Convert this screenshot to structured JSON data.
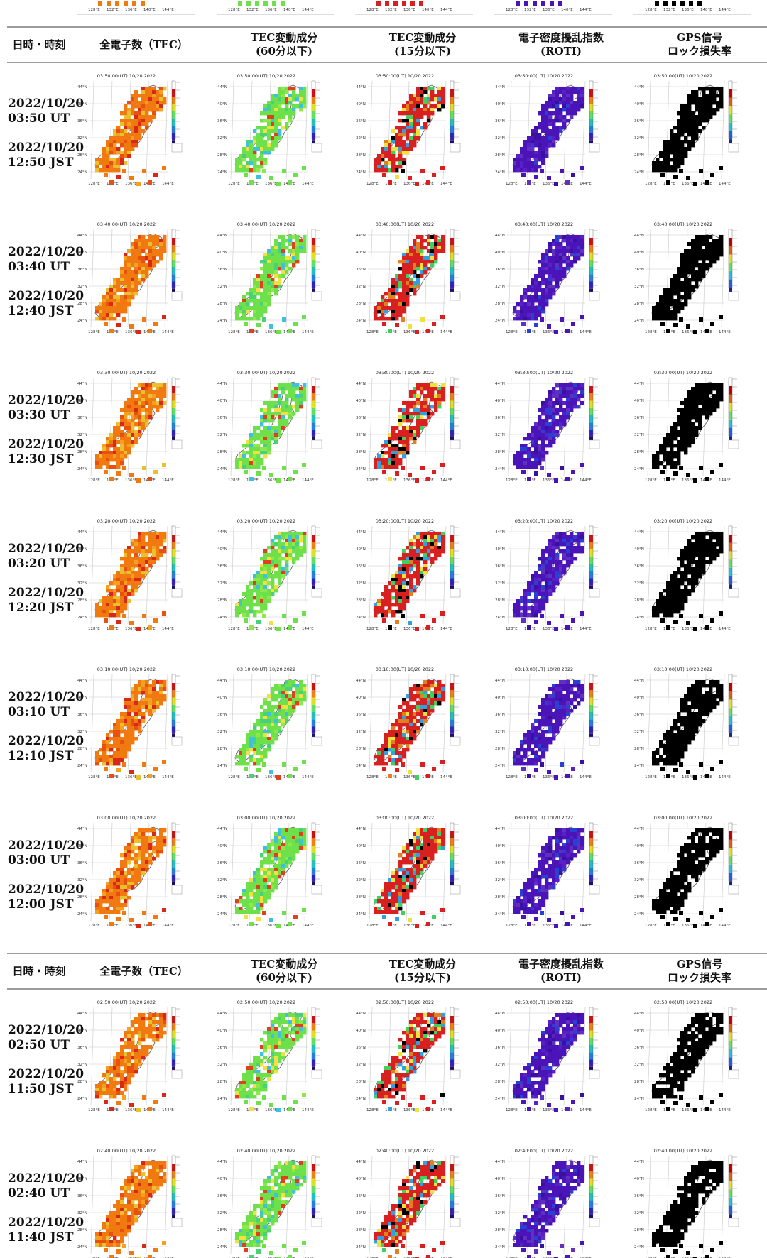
{
  "headers": [
    {
      "lines": [
        "日時・時刻"
      ]
    },
    {
      "lines": [
        "全電子数（TEC）"
      ]
    },
    {
      "lines": [
        "TEC変動成分",
        "(60分以下)"
      ]
    },
    {
      "lines": [
        "TEC変動成分",
        "(15分以下)"
      ]
    },
    {
      "lines": [
        "電子密度擾乱指数",
        "(ROTI)"
      ]
    },
    {
      "lines": [
        "GPS信号",
        "ロック損失率"
      ]
    }
  ],
  "map_text": {
    "lat_ticks": [
      "44°N",
      "40°N",
      "36°N",
      "32°N",
      "28°N",
      "24°N"
    ],
    "lon_ticks": [
      "128°E",
      "132°E",
      "136°E",
      "140°E",
      "144°E"
    ],
    "date": "10/20 2022"
  },
  "panel_types": [
    "tec",
    "dtec60",
    "dtec15",
    "roti",
    "lol"
  ],
  "colors": {
    "header_rule": "#9c9c9c",
    "tec": "#f07a10",
    "dtec60": "#6ee04a",
    "dtec15": "#d82020",
    "roti": "#4a14b8",
    "lol": "#000000"
  },
  "rows": [
    {
      "utc": "03:50",
      "date_ut": "2022/10/20",
      "ut": "03:50 UT",
      "date_jst": "2022/10/20",
      "jst": "12:50 JST"
    },
    {
      "utc": "03:40",
      "date_ut": "2022/10/20",
      "ut": "03:40 UT",
      "date_jst": "2022/10/20",
      "jst": "12:40 JST"
    },
    {
      "utc": "03:30",
      "date_ut": "2022/10/20",
      "ut": "03:30 UT",
      "date_jst": "2022/10/20",
      "jst": "12:30 JST"
    },
    {
      "utc": "03:20",
      "date_ut": "2022/10/20",
      "ut": "03:20 UT",
      "date_jst": "2022/10/20",
      "jst": "12:20 JST"
    },
    {
      "utc": "03:10",
      "date_ut": "2022/10/20",
      "ut": "03:10 UT",
      "date_jst": "2022/10/20",
      "jst": "12:10 JST"
    },
    {
      "utc": "03:00",
      "date_ut": "2022/10/20",
      "ut": "03:00 UT",
      "date_jst": "2022/10/20",
      "jst": "12:00 JST"
    },
    {
      "utc": "02:50",
      "date_ut": "2022/10/20",
      "ut": "02:50 UT",
      "date_jst": "2022/10/20",
      "jst": "11:50 JST"
    },
    {
      "utc": "02:40",
      "date_ut": "2022/10/20",
      "ut": "02:40 UT",
      "date_jst": "2022/10/20",
      "jst": "11:40 JST"
    }
  ]
}
